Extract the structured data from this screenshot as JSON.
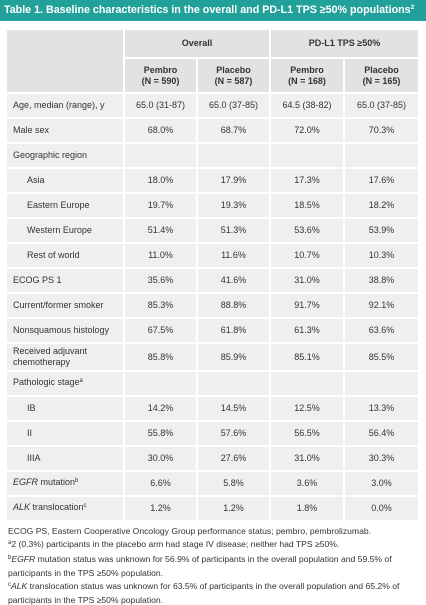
{
  "title": {
    "text": "Table 1. Baseline characteristics in the overall and PD-L1 TPS ≥50% populations",
    "ref": "2"
  },
  "colors": {
    "title_bar": "#22a19a",
    "header_cell": "#e2e2e2",
    "body_cell": "#efefef",
    "text": "#333333"
  },
  "table": {
    "groups": [
      "Overall",
      "PD-L1 TPS ≥50%"
    ],
    "columns": [
      {
        "arm": "Pembro",
        "n": "(N = 590)"
      },
      {
        "arm": "Placebo",
        "n": "(N = 587)"
      },
      {
        "arm": "Pembro",
        "n": "(N = 168)"
      },
      {
        "arm": "Placebo",
        "n": "(N = 165)"
      }
    ],
    "rows": [
      {
        "label": "Age, median (range), y",
        "values": [
          "65.0 (31-87)",
          "65.0 (37-85)",
          "64.5 (38-82)",
          "65.0 (37-85)"
        ]
      },
      {
        "label": "Male sex",
        "values": [
          "68.0%",
          "68.7%",
          "72.0%",
          "70.3%"
        ]
      },
      {
        "label": "Geographic region"
      },
      {
        "label": "Asia",
        "values": [
          "18.0%",
          "17.9%",
          "17.3%",
          "17.6%"
        ]
      },
      {
        "label": "Eastern Europe",
        "values": [
          "19.7%",
          "19.3%",
          "18.5%",
          "18.2%"
        ]
      },
      {
        "label": "Western Europe",
        "values": [
          "51.4%",
          "51.3%",
          "53.6%",
          "53.9%"
        ]
      },
      {
        "label": "Rest of world",
        "values": [
          "11.0%",
          "11.6%",
          "10.7%",
          "10.3%"
        ]
      },
      {
        "label": "ECOG PS 1",
        "values": [
          "35.6%",
          "41.6%",
          "31.0%",
          "38.8%"
        ]
      },
      {
        "label": "Current/former smoker",
        "values": [
          "85.3%",
          "88.8%",
          "91.7%",
          "92.1%"
        ]
      },
      {
        "label": "Nonsquamous histology",
        "values": [
          "67.5%",
          "61.8%",
          "61.3%",
          "63.6%"
        ]
      },
      {
        "label": "Received adjuvant chemotherapy",
        "values": [
          "85.8%",
          "85.9%",
          "85.1%",
          "85.5%"
        ]
      },
      {
        "label": "Pathologic stage",
        "sup": "a"
      },
      {
        "label": "IB",
        "values": [
          "14.2%",
          "14.5%",
          "12.5%",
          "13.3%"
        ]
      },
      {
        "label": "II",
        "values": [
          "55.8%",
          "57.6%",
          "56.5%",
          "56.4%"
        ]
      },
      {
        "label": "IIIA",
        "values": [
          "30.0%",
          "27.6%",
          "31.0%",
          "30.3%"
        ]
      },
      {
        "label_italic": "EGFR",
        "label": " mutation",
        "sup": "b",
        "values": [
          "6.6%",
          "5.8%",
          "3.6%",
          "3.0%"
        ]
      },
      {
        "label_italic": "ALK",
        "label": " translocation",
        "sup": "c",
        "values": [
          "1.2%",
          "1.2%",
          "1.8%",
          "0.0%"
        ]
      }
    ]
  },
  "footnotes": {
    "abbreviations": "ECOG PS, Eastern Cooperative Oncology Group performance status; pembro, pembrolizumab.",
    "notes": [
      {
        "marker": "a",
        "text": "2 (0.3%) participants in the placebo arm had stage IV disease; neither had TPS ≥50%."
      },
      {
        "marker": "b",
        "italic": "EGFR",
        "text": " mutation status was unknown for 56.9% of participants in the overall population and 59.5% of participants in the TPS ≥50% population."
      },
      {
        "marker": "c",
        "italic": "ALK",
        "text": " translocation status was unknown for 63.5% of participants in the overall population and 65.2% of participants in the TPS ≥50% population."
      }
    ]
  }
}
